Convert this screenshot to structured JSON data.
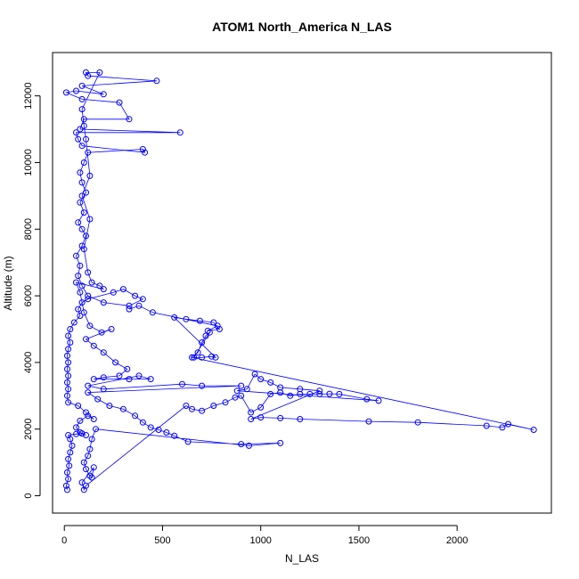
{
  "chart_data": {
    "type": "scatter",
    "title": "ATOM1 North_America N_LAS",
    "xlabel": "N_LAS",
    "ylabel": "Altitude (m)",
    "xlim": [
      -60,
      2480
    ],
    "ylim": [
      -520,
      13300
    ],
    "xticks": [
      0,
      500,
      1000,
      1500,
      2000
    ],
    "yticks": [
      0,
      2000,
      4000,
      6000,
      8000,
      10000,
      12000
    ],
    "grid": false,
    "legend": "none",
    "marker": "open-circle",
    "lines_connecting_points": true,
    "series": [
      {
        "color": "#0000ff",
        "points": [
          [
            15,
            180
          ],
          [
            10,
            300
          ],
          [
            20,
            500
          ],
          [
            15,
            700
          ],
          [
            25,
            900
          ],
          [
            20,
            1100
          ],
          [
            30,
            1300
          ],
          [
            40,
            1500
          ],
          [
            30,
            1700
          ],
          [
            20,
            1820
          ],
          [
            60,
            1850
          ],
          [
            90,
            1870
          ],
          [
            110,
            1820
          ],
          [
            80,
            1900
          ],
          [
            60,
            2050
          ],
          [
            80,
            2250
          ],
          [
            120,
            2400
          ],
          [
            150,
            2300
          ],
          [
            110,
            2500
          ],
          [
            70,
            2700
          ],
          [
            20,
            2800
          ],
          [
            15,
            3000
          ],
          [
            20,
            3200
          ],
          [
            15,
            3400
          ],
          [
            20,
            3600
          ],
          [
            15,
            3800
          ],
          [
            20,
            4000
          ],
          [
            15,
            4200
          ],
          [
            20,
            4400
          ],
          [
            30,
            4600
          ],
          [
            20,
            4800
          ],
          [
            30,
            5000
          ],
          [
            50,
            5200
          ],
          [
            80,
            5400
          ],
          [
            70,
            5600
          ],
          [
            90,
            5800
          ],
          [
            120,
            5900
          ],
          [
            250,
            6100
          ],
          [
            300,
            6200
          ],
          [
            360,
            6000
          ],
          [
            400,
            5900
          ],
          [
            330,
            5700
          ],
          [
            200,
            5800
          ],
          [
            120,
            6000
          ],
          [
            90,
            6300
          ],
          [
            70,
            6600
          ],
          [
            80,
            6900
          ],
          [
            60,
            7200
          ],
          [
            90,
            7500
          ],
          [
            110,
            7800
          ],
          [
            90,
            8000
          ],
          [
            70,
            8200
          ],
          [
            100,
            8500
          ],
          [
            80,
            8800
          ],
          [
            110,
            9100
          ],
          [
            90,
            9400
          ],
          [
            80,
            9700
          ],
          [
            100,
            10000
          ],
          [
            120,
            10300
          ],
          [
            400,
            10400
          ],
          [
            410,
            10300
          ],
          [
            90,
            10500
          ],
          [
            70,
            10700
          ],
          [
            60,
            10900
          ],
          [
            590,
            10900
          ],
          [
            80,
            11000
          ],
          [
            100,
            11300
          ],
          [
            330,
            11300
          ],
          [
            280,
            11800
          ],
          [
            90,
            11900
          ],
          [
            10,
            12100
          ],
          [
            60,
            12150
          ],
          [
            200,
            12050
          ],
          [
            90,
            12300
          ],
          [
            470,
            12450
          ],
          [
            120,
            12600
          ],
          [
            110,
            12700
          ],
          [
            180,
            12700
          ],
          [
            90,
            11600
          ],
          [
            100,
            11100
          ],
          [
            110,
            10700
          ],
          [
            130,
            9600
          ],
          [
            90,
            9000
          ],
          [
            130,
            8300
          ],
          [
            100,
            7400
          ],
          [
            120,
            6700
          ],
          [
            140,
            6400
          ],
          [
            180,
            6300
          ],
          [
            200,
            6200
          ],
          [
            60,
            6400
          ],
          [
            80,
            6100
          ],
          [
            100,
            5500
          ],
          [
            130,
            5100
          ],
          [
            190,
            4900
          ],
          [
            240,
            5000
          ],
          [
            110,
            4700
          ],
          [
            150,
            4500
          ],
          [
            200,
            4300
          ],
          [
            260,
            4000
          ],
          [
            320,
            3800
          ],
          [
            280,
            3600
          ],
          [
            200,
            3550
          ],
          [
            150,
            3500
          ],
          [
            330,
            3500
          ],
          [
            440,
            3500
          ],
          [
            380,
            3600
          ],
          [
            120,
            3300
          ],
          [
            200,
            3200
          ],
          [
            600,
            3350
          ],
          [
            700,
            3300
          ],
          [
            900,
            3300
          ],
          [
            120,
            3100
          ],
          [
            170,
            2900
          ],
          [
            230,
            2700
          ],
          [
            300,
            2600
          ],
          [
            360,
            2400
          ],
          [
            400,
            2200
          ],
          [
            440,
            2050
          ],
          [
            480,
            1980
          ],
          [
            520,
            1900
          ],
          [
            560,
            1800
          ],
          [
            630,
            1620
          ],
          [
            900,
            1550
          ],
          [
            1100,
            1580
          ],
          [
            940,
            1500
          ],
          [
            160,
            2000
          ],
          [
            140,
            1700
          ],
          [
            130,
            1400
          ],
          [
            120,
            1200
          ],
          [
            100,
            1000
          ],
          [
            110,
            800
          ],
          [
            130,
            600
          ],
          [
            140,
            550
          ],
          [
            150,
            850
          ],
          [
            90,
            400
          ],
          [
            100,
            180
          ],
          [
            110,
            300
          ],
          [
            620,
            2700
          ],
          [
            650,
            2600
          ],
          [
            700,
            2550
          ],
          [
            760,
            2700
          ],
          [
            820,
            2800
          ],
          [
            870,
            2950
          ],
          [
            900,
            3000
          ],
          [
            950,
            2500
          ],
          [
            1000,
            2650
          ],
          [
            1050,
            3050
          ],
          [
            1100,
            3100
          ],
          [
            1150,
            3000
          ],
          [
            1200,
            3050
          ],
          [
            1250,
            3050
          ],
          [
            1300,
            3050
          ],
          [
            1350,
            3060
          ],
          [
            1400,
            3050
          ],
          [
            1540,
            2900
          ],
          [
            1600,
            2850
          ],
          [
            880,
            3150
          ],
          [
            930,
            3200
          ],
          [
            970,
            3650
          ],
          [
            1000,
            3500
          ],
          [
            1050,
            3400
          ],
          [
            1100,
            3250
          ],
          [
            1200,
            3200
          ],
          [
            1300,
            3150
          ],
          [
            950,
            2300
          ],
          [
            1000,
            2350
          ],
          [
            1100,
            2330
          ],
          [
            1200,
            2300
          ],
          [
            1550,
            2230
          ],
          [
            1800,
            2200
          ],
          [
            2150,
            2100
          ],
          [
            2230,
            2050
          ],
          [
            2260,
            2150
          ],
          [
            2390,
            1980
          ],
          [
            650,
            4150
          ],
          [
            680,
            4300
          ],
          [
            700,
            4600
          ],
          [
            720,
            4800
          ],
          [
            740,
            4900
          ],
          [
            660,
            4150
          ],
          [
            700,
            4150
          ],
          [
            750,
            4180
          ],
          [
            770,
            4150
          ],
          [
            560,
            5350
          ],
          [
            620,
            5300
          ],
          [
            690,
            5250
          ],
          [
            760,
            5200
          ],
          [
            790,
            5000
          ],
          [
            730,
            4950
          ],
          [
            780,
            5100
          ],
          [
            450,
            5500
          ],
          [
            380,
            5700
          ],
          [
            330,
            5600
          ]
        ]
      }
    ]
  }
}
